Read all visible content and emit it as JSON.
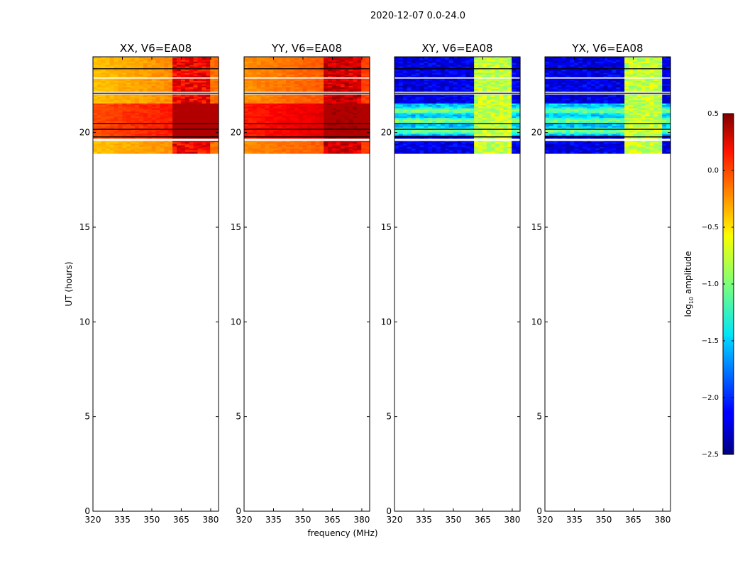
{
  "figure": {
    "suptitle": "2020-12-07 0.0-24.0",
    "xlabel": "frequency (MHz)",
    "ylabel": "UT (hours)"
  },
  "chart_data": {
    "type": "heatmap",
    "suptitle": "2020-12-07 0.0-24.0",
    "xlabel": "frequency (MHz)",
    "ylabel": "UT (hours)",
    "xlim": [
      320,
      384
    ],
    "ylim": [
      0,
      24
    ],
    "xticks": [
      320,
      335,
      350,
      365,
      380
    ],
    "yticks": [
      0,
      5,
      10,
      15,
      20
    ],
    "data_time_range": [
      18.9,
      24.0
    ],
    "panels": [
      {
        "title": "XX, V6=EA08",
        "polarization": "XX",
        "base_log_amp": -0.45,
        "rfi_log_amp": 0.15
      },
      {
        "title": "YY, V6=EA08",
        "polarization": "YY",
        "base_log_amp": -0.3,
        "rfi_log_amp": 0.25
      },
      {
        "title": "XY, V6=EA08",
        "polarization": "XY",
        "base_log_amp": -2.2,
        "rfi_log_amp": -0.8
      },
      {
        "title": "YX, V6=EA08",
        "polarization": "YX",
        "base_log_amp": -2.2,
        "rfi_log_amp": -0.8
      }
    ],
    "colorbar": {
      "label": "log10 amplitude",
      "label_base": "log",
      "label_sub": "10",
      "label_rest": " amplitude",
      "range": [
        -2.5,
        0.5
      ],
      "ticks": [
        -2.5,
        -2.0,
        -1.5,
        -1.0,
        -0.5,
        0.0,
        0.5
      ],
      "tick_labels": [
        "−2.5",
        "−2.0",
        "−1.5",
        "−1.0",
        "−0.5",
        "0.0",
        "0.5"
      ],
      "colormap": "jet"
    }
  }
}
